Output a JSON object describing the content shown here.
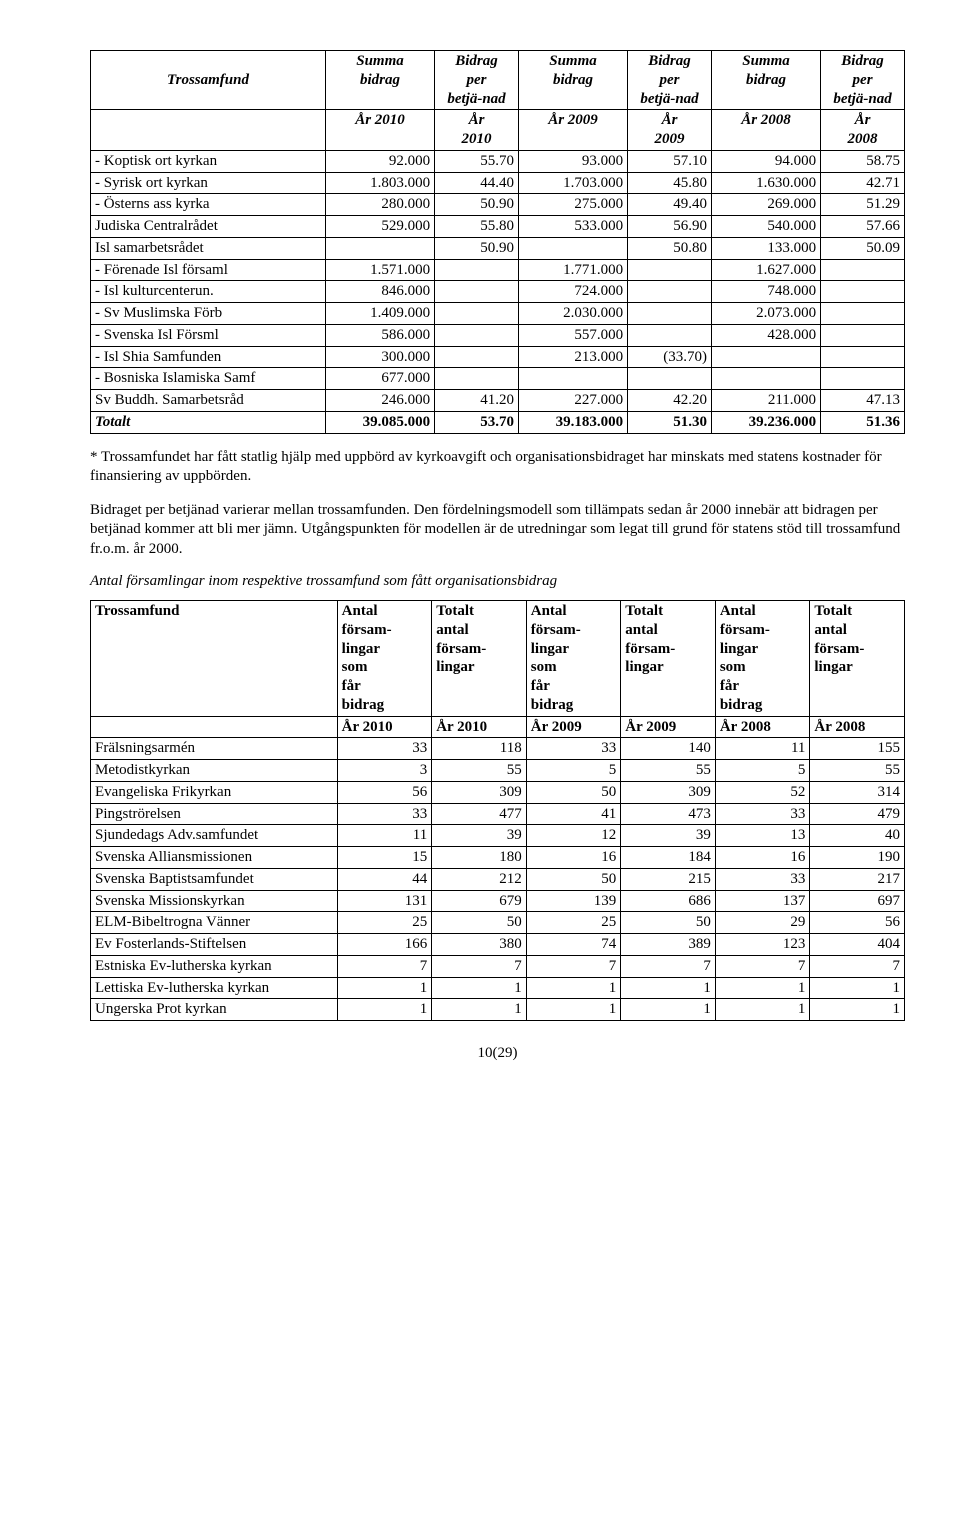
{
  "table1": {
    "header1": [
      "Trossamfund",
      "Summa bidrag",
      "Bidrag per betjä-nad",
      "Summa bidrag",
      "Bidrag per betjä-nad",
      "Summa bidrag",
      "Bidrag per betjä-nad"
    ],
    "header2": [
      "",
      "År 2010",
      "År 2010",
      "År 2009",
      "År 2009",
      "År 2008",
      "År 2008"
    ],
    "rows": [
      {
        "label": "- Koptisk ort kyrkan",
        "cells": [
          "92.000",
          "55.70",
          "93.000",
          "57.10",
          "94.000",
          "58.75"
        ]
      },
      {
        "label": "- Syrisk ort kyrkan",
        "cells": [
          "1.803.000",
          "44.40",
          "1.703.000",
          "45.80",
          "1.630.000",
          "42.71"
        ]
      },
      {
        "label": "- Österns ass kyrka",
        "cells": [
          "280.000",
          "50.90",
          "275.000",
          "49.40",
          "269.000",
          "51.29"
        ]
      },
      {
        "label": "Judiska Centralrådet",
        "cells": [
          "529.000",
          "55.80",
          "533.000",
          "56.90",
          "540.000",
          "57.66"
        ]
      },
      {
        "label": "Isl samarbetsrådet",
        "cells": [
          "",
          "50.90",
          "",
          "50.80",
          "133.000",
          "50.09"
        ]
      },
      {
        "label": "- Förenade Isl församl",
        "cells": [
          "1.571.000",
          "",
          "1.771.000",
          "",
          "1.627.000",
          ""
        ]
      },
      {
        "label": "- Isl kulturcenterun.",
        "cells": [
          "846.000",
          "",
          "724.000",
          "",
          "748.000",
          ""
        ]
      },
      {
        "label": "- Sv Muslimska Förb",
        "cells": [
          "1.409.000",
          "",
          "2.030.000",
          "",
          "2.073.000",
          ""
        ]
      },
      {
        "label": "- Svenska Isl Försml",
        "cells": [
          "586.000",
          "",
          "557.000",
          "",
          "428.000",
          ""
        ]
      },
      {
        "label": "- Isl Shia Samfunden",
        "cells": [
          "300.000",
          "",
          "213.000",
          "(33.70)",
          "",
          ""
        ]
      },
      {
        "label": "- Bosniska Islamiska Samf",
        "cells": [
          "677.000",
          "",
          "",
          "",
          "",
          ""
        ]
      },
      {
        "label": "Sv Buddh. Samarbetsråd",
        "cells": [
          "246.000",
          "41.20",
          "227.000",
          "42.20",
          "211.000",
          "47.13"
        ]
      }
    ],
    "total": {
      "label": "Totalt",
      "cells": [
        "39.085.000",
        "53.70",
        "39.183.000",
        "51.30",
        "39.236.000",
        "51.36"
      ]
    }
  },
  "para1": "* Trossamfundet har fått statlig hjälp med uppbörd av kyrkoavgift och organisationsbidraget har minskats med statens kostnader för finansiering av uppbörden.",
  "para2": "Bidraget per betjänad varierar mellan trossamfunden. Den fördelningsmodell som tillämpats sedan år 2000 innebär att bidragen per betjänad kommer att bli mer jämn. Utgångspunkten för modellen är de utredningar som legat till grund för statens stöd till trossamfund fr.o.m. år 2000.",
  "subtitle": "Antal församlingar inom respektive trossamfund som fått organisationsbidrag",
  "table2": {
    "header1": [
      "Trossamfund",
      "Antal försam-lingar som får bidrag",
      "Totalt antal försam-lingar",
      "Antal försam-lingar som får bidrag",
      "Totalt antal försam-lingar",
      "Antal försam-lingar som får bidrag",
      "Totalt antal försam-lingar"
    ],
    "header2": [
      "",
      "År 2010",
      "År 2010",
      "År 2009",
      "År 2009",
      "År 2008",
      "År 2008"
    ],
    "rows": [
      {
        "label": "Frälsningsarmén",
        "cells": [
          "33",
          "118",
          "33",
          "140",
          "11",
          "155"
        ]
      },
      {
        "label": "Metodistkyrkan",
        "cells": [
          "3",
          "55",
          "5",
          "55",
          "5",
          "55"
        ]
      },
      {
        "label": "Evangeliska Frikyrkan",
        "cells": [
          "56",
          "309",
          "50",
          "309",
          "52",
          "314"
        ]
      },
      {
        "label": "Pingströrelsen",
        "cells": [
          "33",
          "477",
          "41",
          "473",
          "33",
          "479"
        ]
      },
      {
        "label": "Sjundedags Adv.samfundet",
        "cells": [
          "11",
          "39",
          "12",
          "39",
          "13",
          "40"
        ]
      },
      {
        "label": "Svenska Alliansmissionen",
        "cells": [
          "15",
          "180",
          "16",
          "184",
          "16",
          "190"
        ]
      },
      {
        "label": "Svenska Baptistsamfundet",
        "cells": [
          "44",
          "212",
          "50",
          "215",
          "33",
          "217"
        ]
      },
      {
        "label": "Svenska Missionskyrkan",
        "cells": [
          "131",
          "679",
          "139",
          "686",
          "137",
          "697"
        ]
      },
      {
        "label": "ELM-Bibeltrogna Vänner",
        "cells": [
          "25",
          "50",
          "25",
          "50",
          "29",
          "56"
        ]
      },
      {
        "label": "Ev Fosterlands-Stiftelsen",
        "cells": [
          "166",
          "380",
          "74",
          "389",
          "123",
          "404"
        ]
      },
      {
        "label": "Estniska Ev-lutherska kyrkan",
        "cells": [
          "7",
          "7",
          "7",
          "7",
          "7",
          "7"
        ]
      },
      {
        "label": "Lettiska Ev-lutherska kyrkan",
        "cells": [
          "1",
          "1",
          "1",
          "1",
          "1",
          "1"
        ]
      },
      {
        "label": "Ungerska Prot kyrkan",
        "cells": [
          "1",
          "1",
          "1",
          "1",
          "1",
          "1"
        ]
      }
    ]
  },
  "pagenum": "10(29)"
}
